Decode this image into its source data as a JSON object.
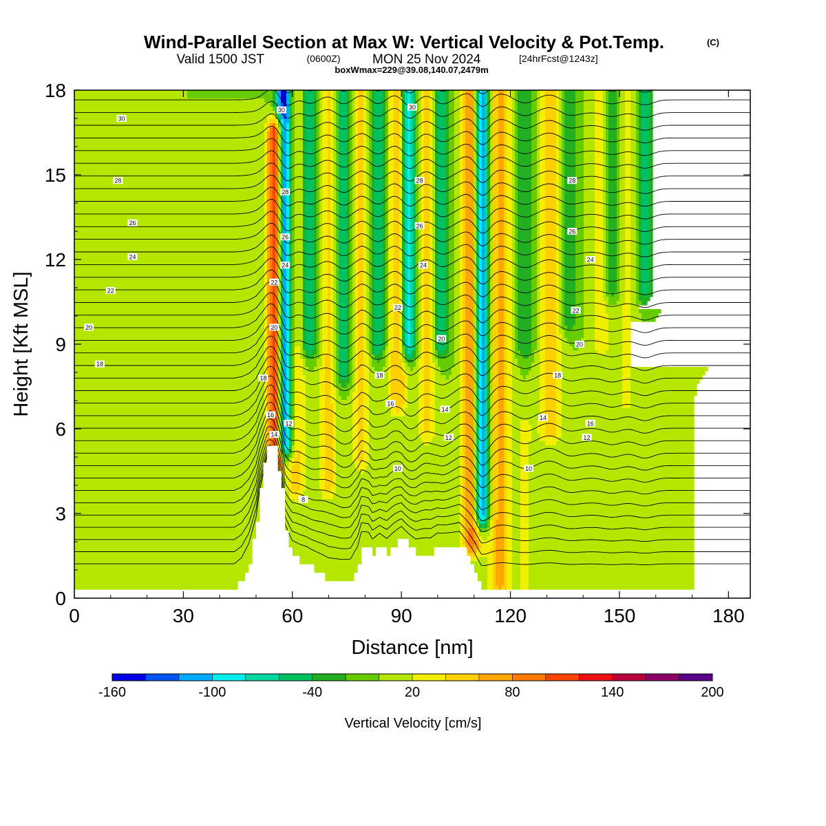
{
  "header": {
    "title": "Wind-Parallel Section at Max W: Vertical Velocity & Pot.Temp.",
    "copyright": "(C)",
    "valid_prefix": "Valid 1500 JST",
    "valid_utc": "(0600Z)",
    "valid_date": "MON 25 Nov 2024",
    "forecast": "[24hrFcst@1243z]",
    "box_info": "boxWmax=229@39.08,140.07,2479m"
  },
  "chart_data": {
    "type": "heatmap",
    "title": "Wind-Parallel Section at Max W: Vertical Velocity & Pot.Temp.",
    "xlabel": "Distance [nm]",
    "ylabel": "Height [Kft MSL]",
    "xlim": [
      0,
      186
    ],
    "ylim": [
      0,
      18
    ],
    "x_ticks": [
      0,
      30,
      60,
      90,
      120,
      150,
      180
    ],
    "y_ticks": [
      0,
      3,
      6,
      9,
      12,
      15,
      18
    ],
    "colorbar": {
      "label": "Vertical Velocity [cm/s]",
      "tick_labels": [
        "-160",
        "-100",
        "-40",
        "20",
        "80",
        "140",
        "200"
      ],
      "levels": [
        -160,
        -140,
        -120,
        -100,
        -80,
        -60,
        -40,
        -20,
        0,
        20,
        40,
        60,
        80,
        100,
        120,
        140,
        160,
        180,
        200
      ],
      "colors": [
        "#0000e6",
        "#0055f0",
        "#00aaff",
        "#00eeee",
        "#00d6a0",
        "#00c060",
        "#22b022",
        "#66cc00",
        "#b4e600",
        "#f2ee00",
        "#ffd000",
        "#ffa600",
        "#ff7a00",
        "#ff4400",
        "#ee1111",
        "#b8003a",
        "#8a0066",
        "#5a0088"
      ]
    },
    "vertical_velocity_field": {
      "background_cm_s": 0,
      "features": [
        {
          "x": 55.5,
          "sigma_x": 1.6,
          "z_min": 5.0,
          "z_max": 16.5,
          "w": 150
        },
        {
          "x": 57.8,
          "sigma_x": 1.6,
          "z_min": 5.5,
          "z_max": 18.0,
          "w": -160
        },
        {
          "x": 61.0,
          "sigma_x": 1.8,
          "z_min": 4.0,
          "z_max": 18.0,
          "w": 50
        },
        {
          "x": 64.5,
          "sigma_x": 1.8,
          "z_min": 9.0,
          "z_max": 18.0,
          "w": -60
        },
        {
          "x": 70.0,
          "sigma_x": 1.8,
          "z_min": 4.0,
          "z_max": 18.0,
          "w": 45
        },
        {
          "x": 74.0,
          "sigma_x": 1.6,
          "z_min": 8.0,
          "z_max": 18.0,
          "w": -60
        },
        {
          "x": 79.0,
          "sigma_x": 1.8,
          "z_min": 5.0,
          "z_max": 18.0,
          "w": 45
        },
        {
          "x": 83.5,
          "sigma_x": 1.5,
          "z_min": 9.0,
          "z_max": 18.0,
          "w": -60
        },
        {
          "x": 89.0,
          "sigma_x": 1.8,
          "z_min": 7.0,
          "z_max": 18.0,
          "w": 60
        },
        {
          "x": 92.0,
          "sigma_x": 1.5,
          "z_min": 9.0,
          "z_max": 18.0,
          "w": -100
        },
        {
          "x": 97.0,
          "sigma_x": 1.8,
          "z_min": 6.0,
          "z_max": 18.0,
          "w": 45
        },
        {
          "x": 101.0,
          "sigma_x": 1.5,
          "z_min": 9.0,
          "z_max": 18.0,
          "w": -60
        },
        {
          "x": 109.5,
          "sigma_x": 1.8,
          "z_min": 2.0,
          "z_max": 18.0,
          "w": 95
        },
        {
          "x": 112.0,
          "sigma_x": 1.5,
          "z_min": 3.0,
          "z_max": 18.0,
          "w": -140
        },
        {
          "x": 117.0,
          "sigma_x": 2.2,
          "z_min": 0.5,
          "z_max": 18.0,
          "w": 65
        },
        {
          "x": 124.0,
          "sigma_x": 1.8,
          "z_min": 9.0,
          "z_max": 18.0,
          "w": -40
        },
        {
          "x": 131.0,
          "sigma_x": 2.2,
          "z_min": 6.0,
          "z_max": 18.0,
          "w": 55
        },
        {
          "x": 136.0,
          "sigma_x": 1.8,
          "z_min": 10.0,
          "z_max": 18.0,
          "w": -40
        },
        {
          "x": 145.0,
          "sigma_x": 2.0,
          "z_min": 9.0,
          "z_max": 18.0,
          "w": 30
        },
        {
          "x": 148.0,
          "sigma_x": 1.6,
          "z_min": 11.0,
          "z_max": 18.0,
          "w": -40
        },
        {
          "x": 152.0,
          "sigma_x": 1.8,
          "z_min": 7.0,
          "z_max": 18.0,
          "w": 25
        },
        {
          "x": 157.0,
          "sigma_x": 1.6,
          "z_min": 11.0,
          "z_max": 18.0,
          "w": -50
        },
        {
          "x": 124.0,
          "sigma_x": 1.8,
          "z_min": 0.5,
          "z_max": 6.0,
          "w": 25
        },
        {
          "x": 18.0,
          "sigma_x": 3.0,
          "z_min": 4.5,
          "z_max": 11.5,
          "w": 15
        },
        {
          "x": 7.0,
          "sigma_x": 1.5,
          "z_min": 8.5,
          "z_max": 10.5,
          "w": 15
        },
        {
          "x": 42.0,
          "sigma_x": 5.0,
          "z_min": 0.3,
          "z_max": 5.0,
          "w": 15
        },
        {
          "x": 165.0,
          "sigma_x": 3.0,
          "z_min": 1.0,
          "z_max": 9.0,
          "w": 12
        },
        {
          "x": 175.0,
          "sigma_x": 3.0,
          "z_min": 1.0,
          "z_max": 7.0,
          "w": -5
        }
      ]
    },
    "terrain_kft": {
      "x": [
        0,
        44,
        46,
        48,
        50,
        51,
        52,
        53,
        54,
        55,
        56,
        57,
        58,
        60,
        62,
        64,
        66,
        68,
        70,
        72,
        74,
        76,
        78,
        79,
        81,
        82,
        84,
        86,
        88,
        90,
        92,
        94,
        96,
        98,
        100,
        102,
        104,
        106,
        108,
        110,
        112,
        186
      ],
      "z": [
        0.3,
        0.3,
        0.6,
        1.3,
        2.6,
        3.9,
        4.7,
        5.5,
        5.5,
        5.3,
        4.6,
        3.8,
        2.3,
        1.5,
        1.3,
        1.2,
        1.0,
        0.8,
        0.6,
        0.6,
        0.6,
        0.6,
        1.2,
        1.9,
        1.9,
        1.6,
        1.9,
        1.6,
        1.9,
        2.2,
        1.9,
        1.6,
        1.6,
        1.6,
        1.9,
        1.9,
        1.9,
        1.9,
        1.4,
        0.9,
        0.3,
        0.3
      ]
    },
    "theta_contours": {
      "levels": [
        8,
        10,
        12,
        14,
        16,
        18,
        20,
        22,
        24,
        26,
        28,
        30
      ],
      "labels": [
        {
          "text": "30",
          "x": 13,
          "y": 17.0
        },
        {
          "text": "28",
          "x": 12,
          "y": 14.8
        },
        {
          "text": "26",
          "x": 16,
          "y": 13.3
        },
        {
          "text": "24",
          "x": 16,
          "y": 12.1
        },
        {
          "text": "22",
          "x": 10,
          "y": 10.9
        },
        {
          "text": "20",
          "x": 4,
          "y": 9.6
        },
        {
          "text": "18",
          "x": 7,
          "y": 8.3
        },
        {
          "text": "30",
          "x": 57,
          "y": 17.3
        },
        {
          "text": "28",
          "x": 58,
          "y": 14.4
        },
        {
          "text": "26",
          "x": 58,
          "y": 12.8
        },
        {
          "text": "24",
          "x": 58,
          "y": 11.8
        },
        {
          "text": "22",
          "x": 55,
          "y": 11.2
        },
        {
          "text": "20",
          "x": 55,
          "y": 9.6
        },
        {
          "text": "18",
          "x": 52,
          "y": 7.8
        },
        {
          "text": "16",
          "x": 54,
          "y": 6.5
        },
        {
          "text": "14",
          "x": 55,
          "y": 5.8
        },
        {
          "text": "12",
          "x": 59,
          "y": 6.2
        },
        {
          "text": "30",
          "x": 93,
          "y": 17.4
        },
        {
          "text": "28",
          "x": 95,
          "y": 14.8
        },
        {
          "text": "26",
          "x": 95,
          "y": 13.2
        },
        {
          "text": "24",
          "x": 96,
          "y": 11.8
        },
        {
          "text": "22",
          "x": 89,
          "y": 10.3
        },
        {
          "text": "20",
          "x": 101,
          "y": 9.2
        },
        {
          "text": "18",
          "x": 84,
          "y": 7.9
        },
        {
          "text": "16",
          "x": 87,
          "y": 6.9
        },
        {
          "text": "14",
          "x": 102,
          "y": 6.7
        },
        {
          "text": "12",
          "x": 103,
          "y": 5.7
        },
        {
          "text": "10",
          "x": 89,
          "y": 4.6
        },
        {
          "text": "8",
          "x": 63,
          "y": 3.5
        },
        {
          "text": "28",
          "x": 137,
          "y": 14.8
        },
        {
          "text": "26",
          "x": 137,
          "y": 13.0
        },
        {
          "text": "24",
          "x": 142,
          "y": 12.0
        },
        {
          "text": "22",
          "x": 138,
          "y": 10.2
        },
        {
          "text": "20",
          "x": 139,
          "y": 9.0
        },
        {
          "text": "18",
          "x": 133,
          "y": 7.9
        },
        {
          "text": "16",
          "x": 142,
          "y": 6.2
        },
        {
          "text": "14",
          "x": 129,
          "y": 6.4
        },
        {
          "text": "12",
          "x": 141,
          "y": 5.7
        },
        {
          "text": "10",
          "x": 125,
          "y": 4.6
        }
      ]
    }
  }
}
